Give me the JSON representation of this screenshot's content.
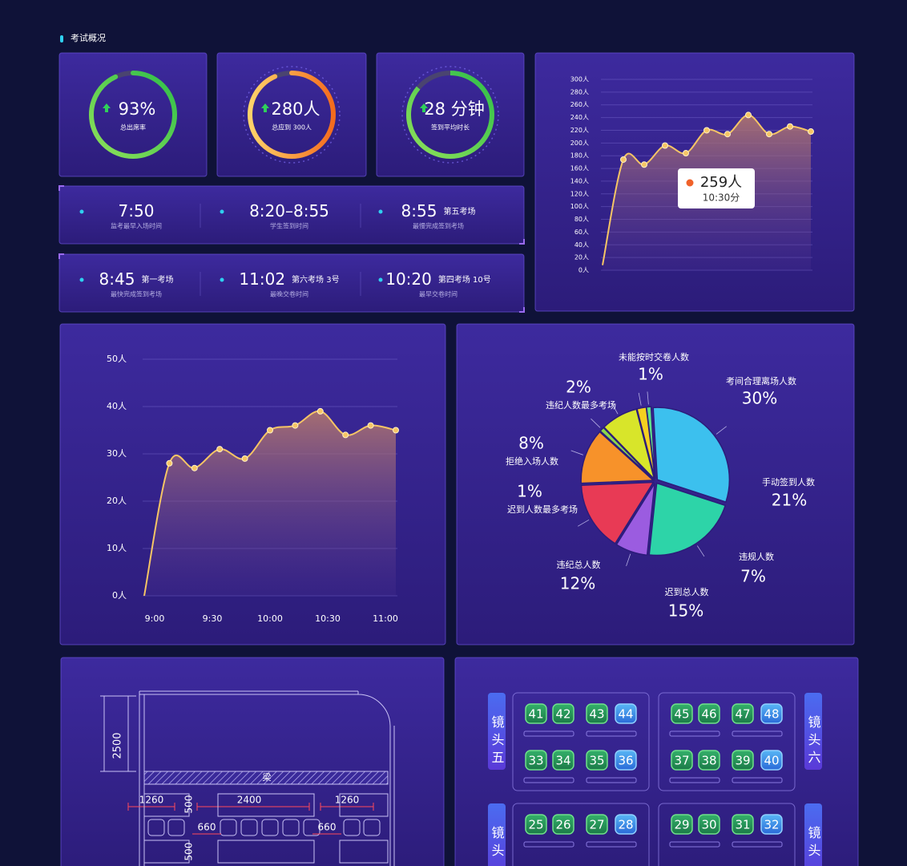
{
  "section_title": "考试概况",
  "rings": [
    {
      "label": "93%",
      "caption": "总出席率",
      "value": 93
    },
    {
      "label": "280人",
      "caption": "总应到 300人",
      "value": 280,
      "max": 300
    },
    {
      "label": "28 分钟",
      "caption": "签到平均时长"
    }
  ],
  "time_rows": [
    [
      {
        "time": "7:50",
        "caption": "监考最早入场时间"
      },
      {
        "time": "8:20–8:55",
        "caption": "学生签到时间"
      },
      {
        "time": "8:55",
        "note": "第五考场",
        "caption": "最慢完成签到考场"
      }
    ],
    [
      {
        "time": "8:45",
        "note": "第一考场",
        "caption": "最快完成签到考场"
      },
      {
        "time": "11:02",
        "note": "第六考场 3号",
        "caption": "最晚交卷时间"
      },
      {
        "time": "10:20",
        "note": "第四考场 10号",
        "caption": "最早交卷时间"
      }
    ]
  ],
  "trend_small": {
    "type": "line",
    "values": [
      8,
      174,
      166,
      196,
      184,
      220,
      214,
      244,
      214,
      226,
      218
    ],
    "color": "#f6c565",
    "ylim": [
      0,
      300
    ],
    "yticks": [
      {
        "value": 0,
        "label": "0人"
      },
      {
        "value": 20,
        "label": "20人"
      },
      {
        "value": 40,
        "label": "40人"
      },
      {
        "value": 60,
        "label": "60人"
      },
      {
        "value": 80,
        "label": "80人"
      },
      {
        "value": 100,
        "label": "100人"
      },
      {
        "value": 120,
        "label": "120人"
      },
      {
        "value": 140,
        "label": "140人"
      },
      {
        "value": 160,
        "label": "160人"
      },
      {
        "value": 180,
        "label": "180人"
      },
      {
        "value": 200,
        "label": "200人"
      },
      {
        "value": 220,
        "label": "220人"
      },
      {
        "value": 240,
        "label": "240人"
      },
      {
        "value": 260,
        "label": "260人"
      },
      {
        "value": 280,
        "label": "280人"
      },
      {
        "value": 300,
        "label": "300人"
      }
    ],
    "grid": true,
    "tooltip": {
      "label": "259人",
      "time": "10:30分"
    }
  },
  "trend_large": {
    "type": "line",
    "values": [
      0,
      28,
      27,
      31,
      29,
      35,
      36,
      39,
      34,
      36,
      35
    ],
    "color": "#f6c565",
    "ylim": [
      0,
      50
    ],
    "yticks": [
      {
        "value": 0,
        "label": "0人"
      },
      {
        "value": 10,
        "label": "10人"
      },
      {
        "value": 20,
        "label": "20人"
      },
      {
        "value": 30,
        "label": "30人"
      },
      {
        "value": 40,
        "label": "40人"
      },
      {
        "value": 50,
        "label": "50人"
      }
    ],
    "xticks": [
      "9:00",
      "9:30",
      "10:00",
      "10:30",
      "11:00"
    ],
    "grid": true
  },
  "pie": {
    "type": "pie",
    "categories": [
      "未能按时交卷人数",
      "考间合理离场人数",
      "手动签到人数",
      "违规人数",
      "迟到总人数",
      "违纪总人数",
      "迟到人数最多考场",
      "拒绝入场人数",
      "违纪人数最多考场"
    ],
    "values": [
      1,
      30,
      21,
      7,
      15,
      12,
      1,
      8,
      2
    ],
    "value_labels": [
      "1%",
      "30%",
      "21%",
      "7%",
      "15%",
      "12%",
      "1%",
      "8%",
      "2%"
    ],
    "colors": [
      "#5fe08a",
      "#3cc0ee",
      "#2dd4a8",
      "#9b5ce0",
      "#e83a55",
      "#f7922a",
      "#8dd84a",
      "#d8e52a",
      "#f5d020"
    ]
  },
  "floor_plan": {
    "height_dim": "2500",
    "beam": "梁",
    "widths": [
      "1260",
      "2400",
      "1260"
    ],
    "gaps": [
      "660",
      "660"
    ],
    "depths": [
      "500",
      "500"
    ]
  },
  "seating": {
    "cameras": [
      "镜头五",
      "镜头六",
      "镜头",
      "镜头"
    ],
    "groups": [
      [
        [
          41,
          42,
          43,
          44
        ],
        [
          33,
          34,
          35,
          36
        ]
      ],
      [
        [
          45,
          46,
          47,
          48
        ],
        [
          37,
          38,
          39,
          40
        ]
      ],
      [
        [
          25,
          26,
          27,
          28
        ]
      ],
      [
        [
          29,
          30,
          31,
          32
        ]
      ]
    ]
  }
}
